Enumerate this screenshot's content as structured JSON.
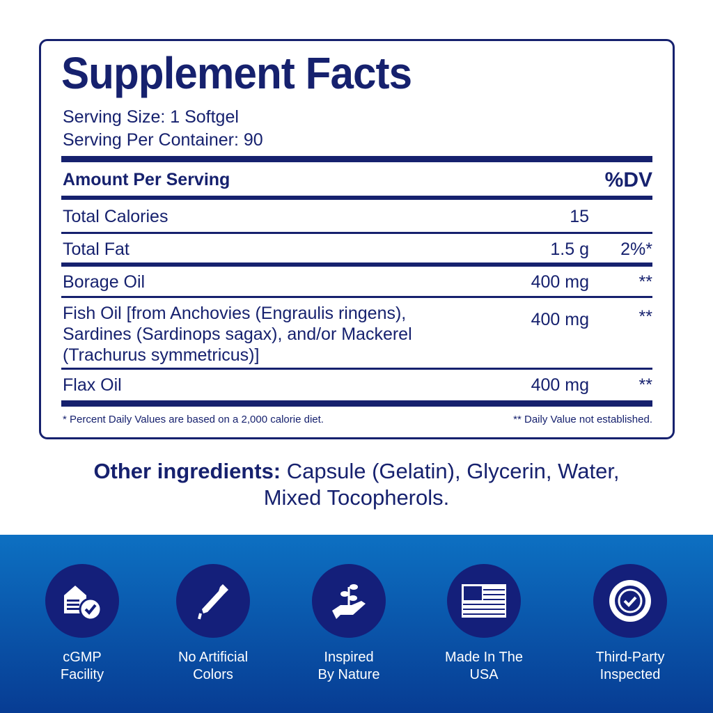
{
  "title": "Supplement Facts",
  "serving_size": "Serving Size: 1 Softgel",
  "servings_per_container": "Serving Per Container: 90",
  "header": {
    "amount": "Amount Per Serving",
    "dv": "%DV"
  },
  "rows": [
    {
      "name": "Total Calories",
      "amount": "15",
      "dv": ""
    },
    {
      "name": "Total Fat",
      "amount": "1.5 g",
      "dv": "2%*"
    },
    {
      "name": "Borage Oil",
      "amount": "400 mg",
      "dv": "**"
    },
    {
      "name_lines": [
        "Fish Oil [from Anchovies (Engraulis ringens),",
        "Sardines (Sardinops sagax), and/or Mackerel",
        "(Trachurus symmetricus)]"
      ],
      "amount": "400 mg",
      "dv": "**"
    },
    {
      "name": "Flax Oil",
      "amount": "400 mg",
      "dv": "**"
    }
  ],
  "footnotes": {
    "left": "* Percent Daily Values are based on a 2,000 calorie diet.",
    "right": "** Daily Value not established."
  },
  "other_ingredients": {
    "label": "Other ingredients:",
    "text": " Capsule (Gelatin), Glycerin, Water,",
    "text2": "Mixed Tocopherols."
  },
  "colors": {
    "navy": "#16216e",
    "band_top": "#0d70c2",
    "band_bottom": "#073c93",
    "circle": "#141f7a"
  },
  "badges": [
    {
      "icon": "factory-check-icon",
      "line1": "cGMP",
      "line2": "Facility"
    },
    {
      "icon": "dropper-icon",
      "line1": "No Artificial",
      "line2": "Colors"
    },
    {
      "icon": "hand-sprout-icon",
      "line1": "Inspired",
      "line2": "By Nature"
    },
    {
      "icon": "usa-flag-icon",
      "line1": "Made In The",
      "line2": "USA"
    },
    {
      "icon": "seal-check-icon",
      "line1": "Third-Party",
      "line2": "Inspected"
    }
  ]
}
